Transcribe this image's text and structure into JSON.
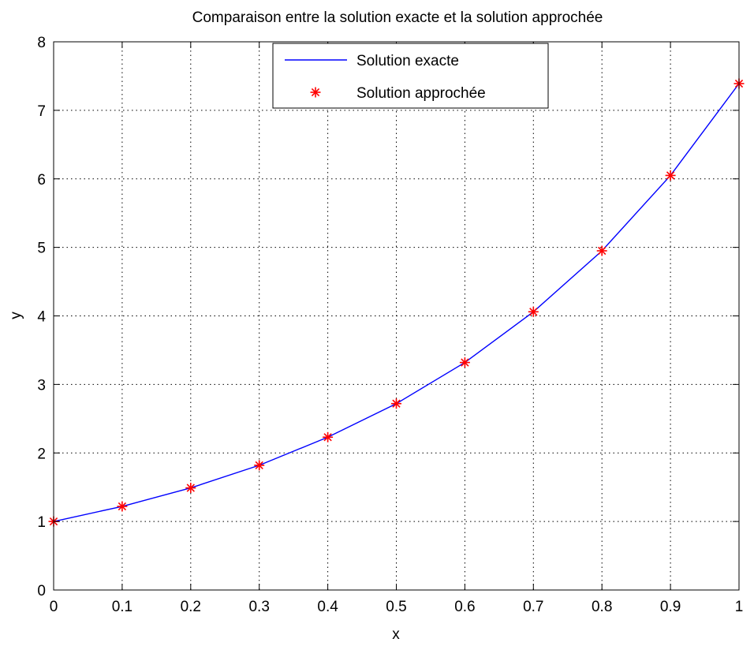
{
  "chart_data": {
    "type": "line",
    "title": "Comparaison entre la solution exacte et la solution approchée",
    "xlabel": "x",
    "ylabel": "y",
    "xlim": [
      0,
      1
    ],
    "ylim": [
      0,
      8
    ],
    "xticks": [
      0,
      0.1,
      0.2,
      0.3,
      0.4,
      0.5,
      0.6,
      0.7,
      0.8,
      0.9,
      1
    ],
    "xtick_labels": [
      "0",
      "0.1",
      "0.2",
      "0.3",
      "0.4",
      "0.5",
      "0.6",
      "0.7",
      "0.8",
      "0.9",
      "1"
    ],
    "yticks": [
      0,
      1,
      2,
      3,
      4,
      5,
      6,
      7,
      8
    ],
    "ytick_labels": [
      "0",
      "1",
      "2",
      "3",
      "4",
      "5",
      "6",
      "7",
      "8"
    ],
    "grid": true,
    "legend_position": "top-center",
    "x": [
      0,
      0.1,
      0.2,
      0.3,
      0.4,
      0.5,
      0.6,
      0.7,
      0.8,
      0.9,
      1
    ],
    "series": [
      {
        "name": "Solution exacte",
        "style": "line",
        "color": "#0000ff",
        "values": [
          1.0,
          1.22,
          1.49,
          1.82,
          2.23,
          2.72,
          3.32,
          4.06,
          4.95,
          6.05,
          7.39
        ]
      },
      {
        "name": "Solution approchée",
        "style": "markers",
        "marker": "asterisk",
        "color": "#ff0000",
        "values": [
          1.0,
          1.22,
          1.49,
          1.82,
          2.23,
          2.72,
          3.32,
          4.06,
          4.95,
          6.05,
          7.39
        ]
      }
    ]
  }
}
